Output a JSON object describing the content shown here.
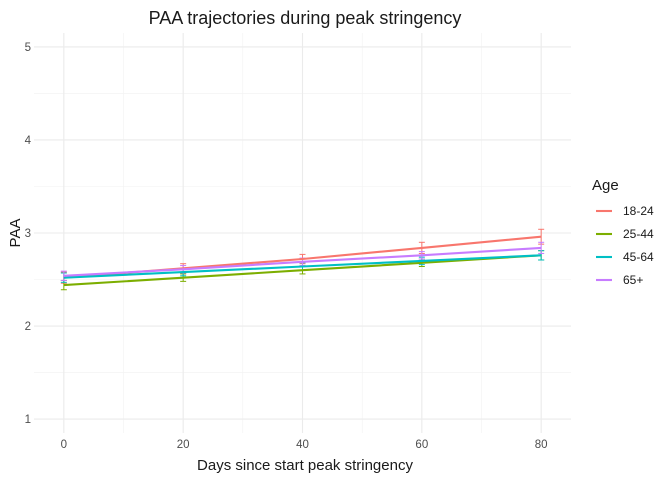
{
  "chart_data": {
    "type": "line",
    "title": "PAA trajectories during peak stringency",
    "xlabel": "Days since start peak stringency",
    "ylabel": "PAA",
    "xlim": [
      -5,
      85
    ],
    "ylim": [
      0.85,
      5.15
    ],
    "x_ticks": [
      0,
      20,
      40,
      60,
      80
    ],
    "y_ticks": [
      1,
      2,
      3,
      4,
      5
    ],
    "grid": true,
    "legend": {
      "title": "Age",
      "position": "right"
    },
    "x": [
      0,
      20,
      40,
      60,
      80
    ],
    "series": [
      {
        "name": "18-24",
        "color": "#F8766D",
        "values": [
          2.52,
          2.62,
          2.72,
          2.84,
          2.96
        ],
        "error": [
          0.06,
          0.05,
          0.05,
          0.06,
          0.08
        ]
      },
      {
        "name": "25-44",
        "color": "#7CAE00",
        "values": [
          2.44,
          2.52,
          2.6,
          2.68,
          2.76
        ],
        "error": [
          0.05,
          0.04,
          0.04,
          0.04,
          0.05
        ]
      },
      {
        "name": "45-64",
        "color": "#00BFC4",
        "values": [
          2.52,
          2.58,
          2.64,
          2.7,
          2.76
        ],
        "error": [
          0.05,
          0.04,
          0.04,
          0.04,
          0.05
        ]
      },
      {
        "name": "65+",
        "color": "#C77CFF",
        "values": [
          2.54,
          2.61,
          2.69,
          2.76,
          2.84
        ],
        "error": [
          0.05,
          0.04,
          0.04,
          0.04,
          0.06
        ]
      }
    ]
  }
}
